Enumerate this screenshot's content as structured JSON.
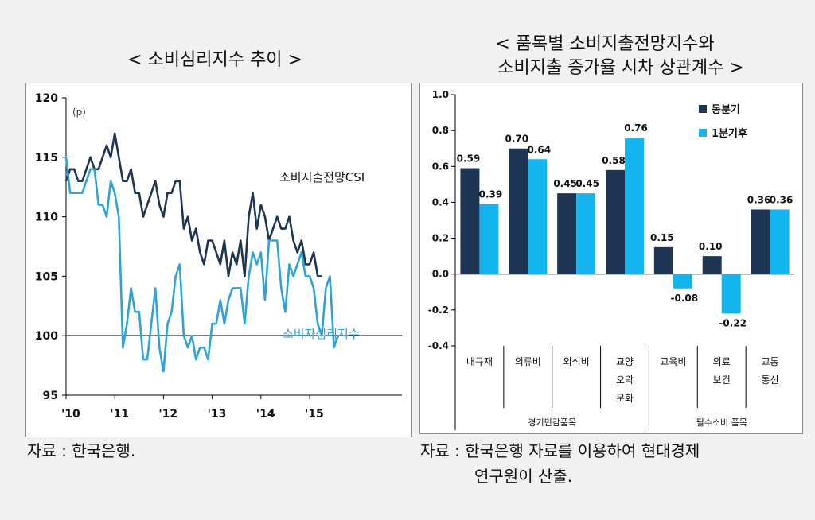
{
  "left": {
    "title": "< 소비심리지수 추이 >",
    "source": "자료 : 한국은행.",
    "chart_data": {
      "type": "line",
      "unit_label": "(p)",
      "ylim": [
        95,
        120
      ],
      "yticks": [
        "120",
        "115",
        "110",
        "105",
        "100",
        "95"
      ],
      "xticks": [
        "'10",
        "'11",
        "'12",
        "'13",
        "'14",
        "'15"
      ],
      "reference_line": 100,
      "series": [
        {
          "name": "소비지출전망CSI",
          "color": "#1f3554",
          "values": [
            113,
            114,
            114,
            113,
            113,
            114,
            115,
            114,
            114,
            115,
            116,
            115,
            117,
            115,
            113,
            113,
            114,
            112,
            112,
            110,
            111,
            112,
            113,
            111,
            110,
            112,
            112,
            113,
            113,
            109,
            110,
            108,
            109,
            107,
            106,
            108,
            108,
            107,
            106,
            108,
            105,
            107,
            106,
            108,
            105,
            110,
            112,
            109,
            111,
            110,
            108,
            109,
            110,
            109,
            109,
            110,
            108,
            107,
            108,
            106,
            106,
            107,
            105,
            105
          ]
        },
        {
          "name": "소비자심리지수",
          "color": "#2ea3d9",
          "values": [
            115,
            112,
            112,
            112,
            112,
            113,
            114,
            114,
            111,
            111,
            110,
            113,
            112,
            110,
            99,
            101,
            104,
            102,
            102,
            98,
            98,
            101,
            104,
            99,
            97,
            101,
            102,
            105,
            106,
            100,
            99,
            100,
            98,
            99,
            99,
            98,
            101,
            101,
            103,
            101,
            103,
            104,
            104,
            104,
            101,
            105,
            107,
            106,
            107,
            103,
            108,
            108,
            108,
            104,
            102,
            106,
            105,
            106,
            107,
            105,
            105,
            104,
            101,
            100,
            104,
            105,
            99,
            100
          ]
        }
      ]
    }
  },
  "right": {
    "title_line1": "< 품목별 소비지출전망지수와",
    "title_line2": "소비지출 증가율 시차 상관계수 >",
    "source_line1": "자료 : 한국은행 자료를 이용하여 현대경제",
    "source_line2": "연구원이 산출.",
    "chart_data": {
      "type": "bar",
      "ylim": [
        -0.4,
        1.0
      ],
      "yticks": [
        "1.0",
        "0.8",
        "0.6",
        "0.4",
        "0.2",
        "0.0",
        "-0.2",
        "-0.4"
      ],
      "categories": [
        [
          "내규재"
        ],
        [
          "의류비"
        ],
        [
          "외식비"
        ],
        [
          "교양",
          "오락",
          "문화"
        ],
        [
          "교육비"
        ],
        [
          "의료",
          "보건"
        ],
        [
          "교통",
          "통신"
        ]
      ],
      "groups": [
        {
          "label": "경기민감품목",
          "count": 4
        },
        {
          "label": "필수소비 품목",
          "count": 3
        }
      ],
      "series": [
        {
          "name": "동분기",
          "color": "#1f3554",
          "values": [
            0.59,
            0.7,
            0.45,
            0.58,
            0.15,
            0.1,
            0.36
          ],
          "labels": [
            "0.59",
            "0.70",
            "0.45",
            "0.58",
            "0.15",
            "0.10",
            "0.36"
          ]
        },
        {
          "name": "1분기후",
          "color": "#14b4ee",
          "values": [
            0.39,
            0.64,
            0.45,
            0.76,
            -0.08,
            -0.22,
            0.36
          ],
          "labels": [
            "0.39",
            "0.64",
            "0.45",
            "0.76",
            "-0.08",
            "-0.22",
            "0.36"
          ]
        }
      ]
    }
  }
}
